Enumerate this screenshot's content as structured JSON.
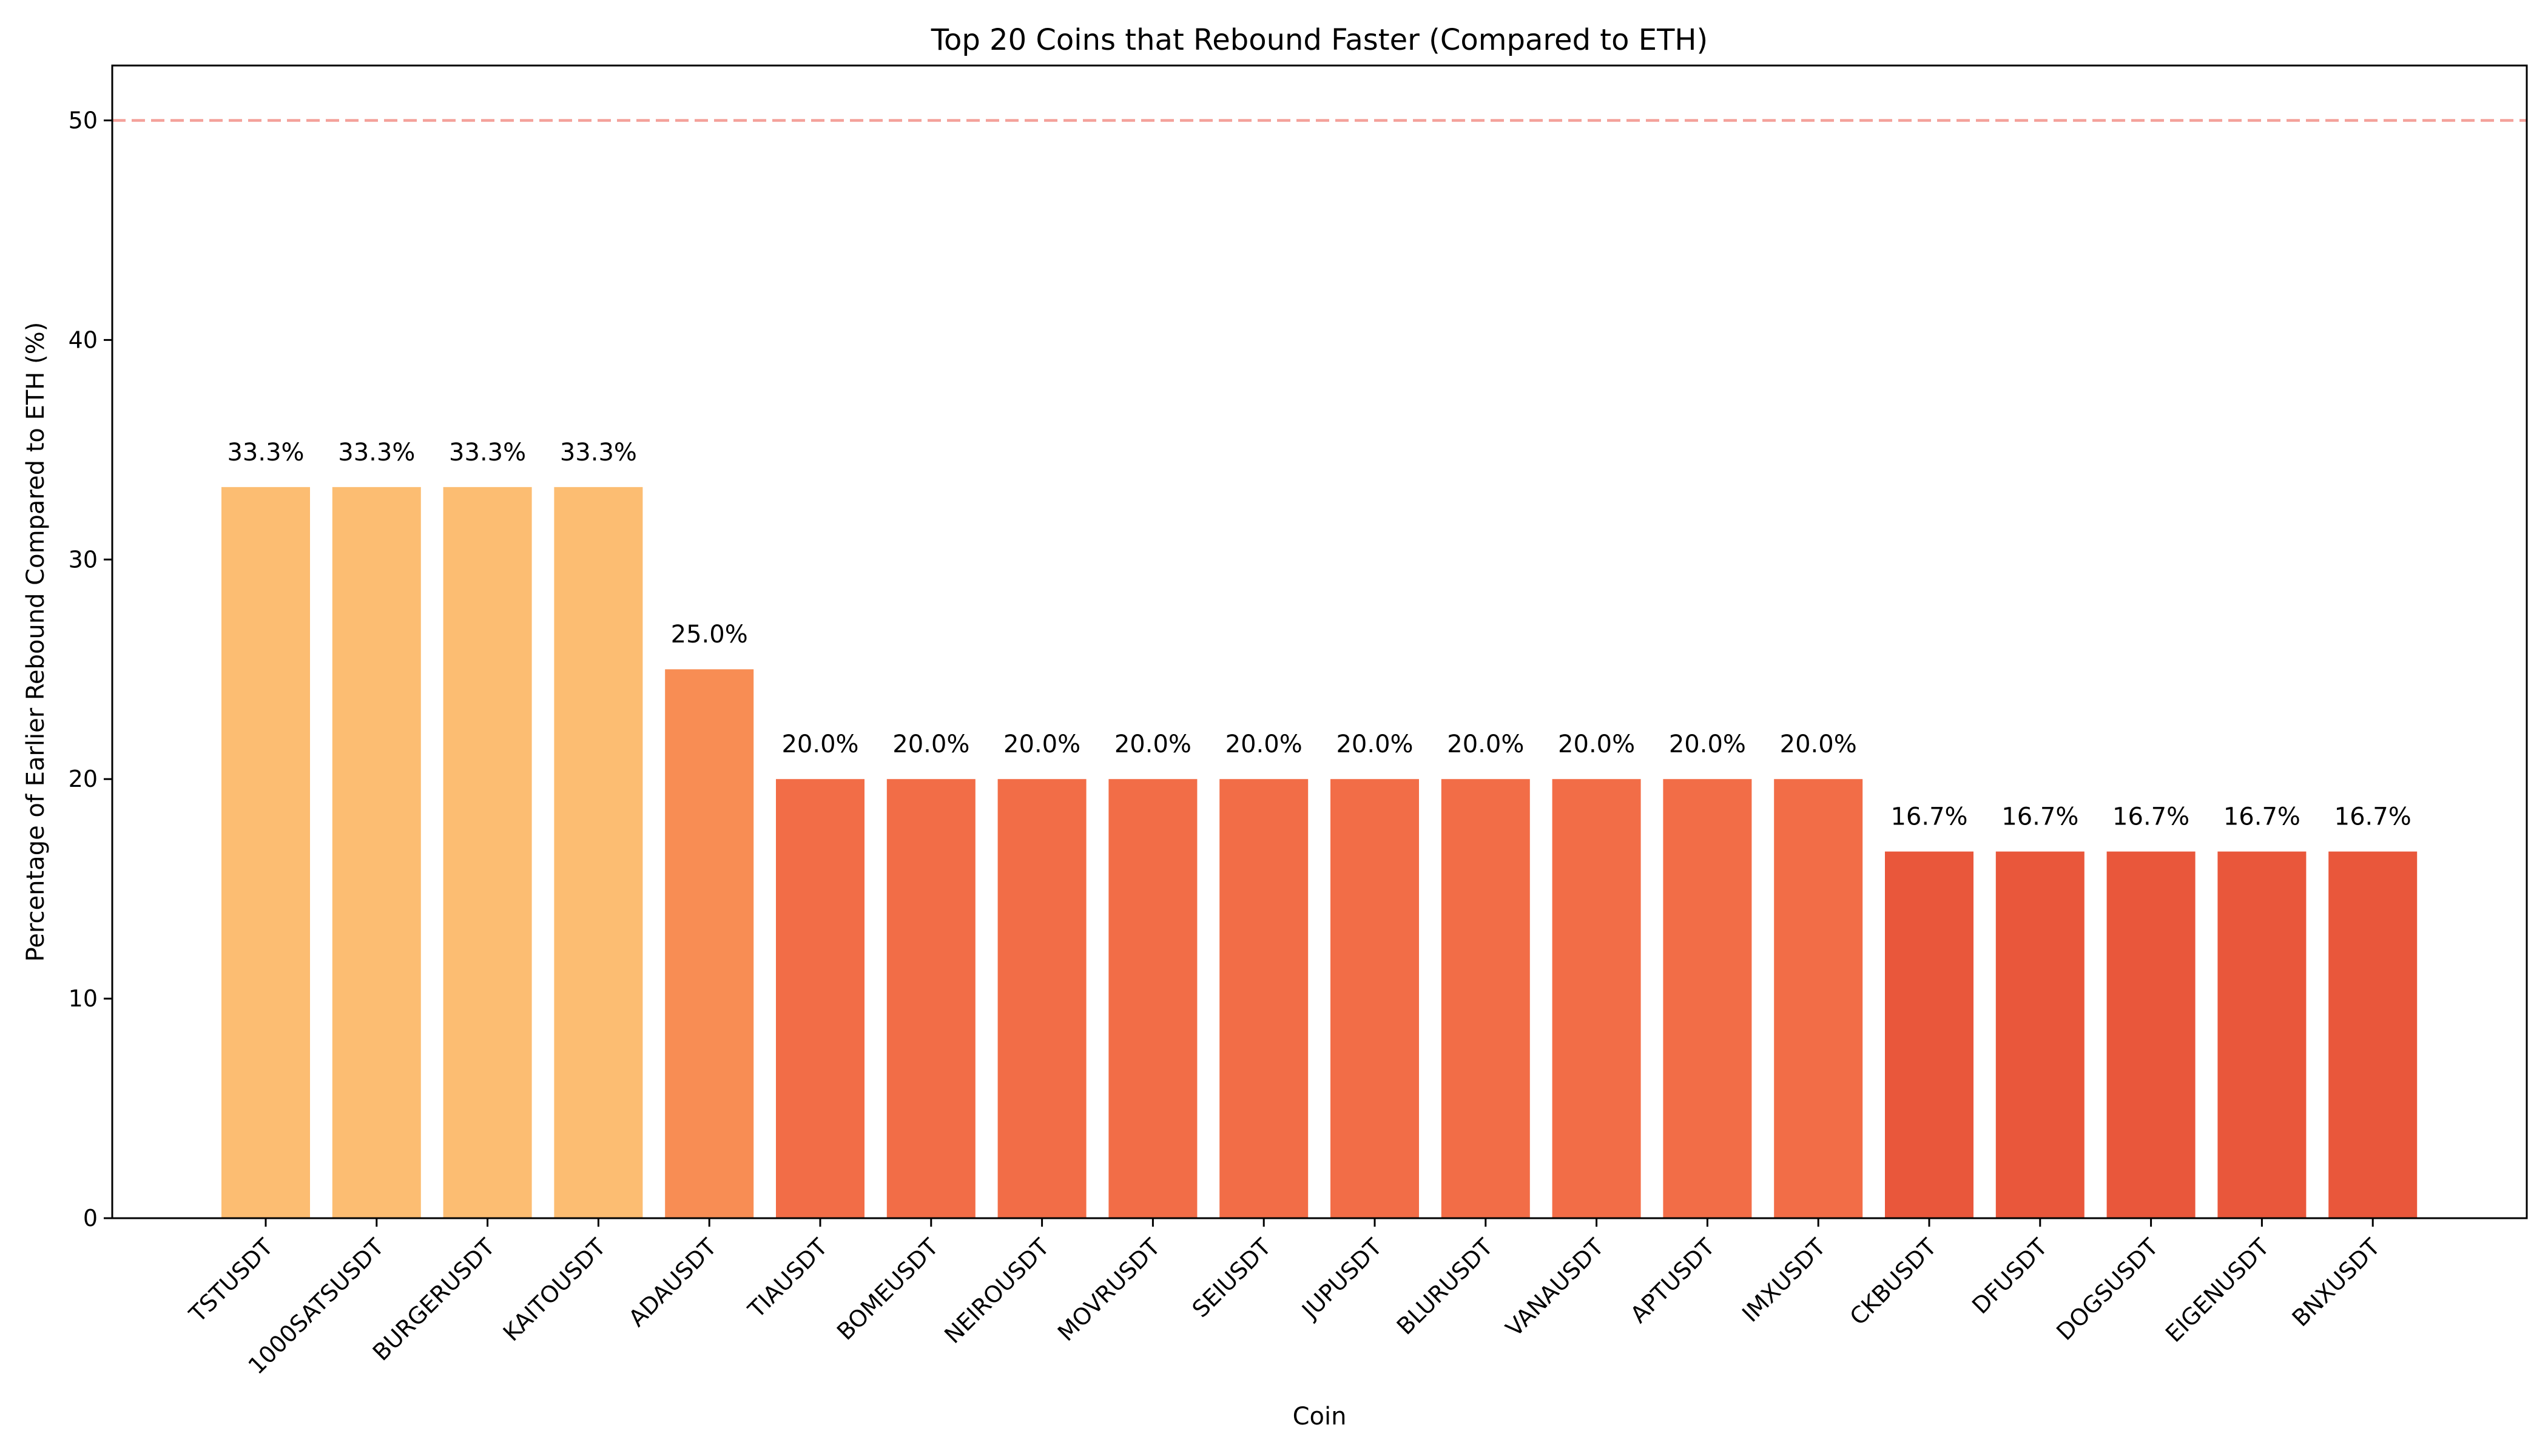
{
  "chart_data": {
    "type": "bar",
    "title": "Top 20 Coins that Rebound Faster (Compared to ETH)",
    "xlabel": "Coin",
    "ylabel": "Percentage of Earlier Rebound Compared to ETH (%)",
    "ylim": [
      0,
      52.5
    ],
    "yticks": [
      0,
      10,
      20,
      30,
      40,
      50
    ],
    "reference_line": {
      "y": 50,
      "style": "dashed",
      "color": "#f4a09a"
    },
    "categories": [
      "TSTUSDT",
      "1000SATSUSDT",
      "BURGERUSDT",
      "KAITOUSDT",
      "ADAUSDT",
      "TIAUSDT",
      "BOMEUSDT",
      "NEIROUSDT",
      "MOVRUSDT",
      "SEIUSDT",
      "JUPUSDT",
      "BLURUSDT",
      "VANAUSDT",
      "APTUSDT",
      "IMXUSDT",
      "CKBUSDT",
      "DFUSDT",
      "DOGSUSDT",
      "EIGENUSDT",
      "BNXUSDT"
    ],
    "values": [
      33.3,
      33.3,
      33.3,
      33.3,
      25.0,
      20.0,
      20.0,
      20.0,
      20.0,
      20.0,
      20.0,
      20.0,
      20.0,
      20.0,
      20.0,
      16.7,
      16.7,
      16.7,
      16.7,
      16.7
    ],
    "value_labels": [
      "33.3%",
      "33.3%",
      "33.3%",
      "33.3%",
      "25.0%",
      "20.0%",
      "20.0%",
      "20.0%",
      "20.0%",
      "20.0%",
      "20.0%",
      "20.0%",
      "20.0%",
      "20.0%",
      "20.0%",
      "16.7%",
      "16.7%",
      "16.7%",
      "16.7%",
      "16.7%"
    ],
    "colors": [
      "#fcbd72",
      "#fcbd72",
      "#fcbd72",
      "#fcbd72",
      "#f88d54",
      "#f26d47",
      "#f26d47",
      "#f26d47",
      "#f26d47",
      "#f26d47",
      "#f26d47",
      "#f26d47",
      "#f26d47",
      "#f26d47",
      "#f26d47",
      "#e9573b",
      "#e9573b",
      "#e9573b",
      "#e9573b",
      "#e9573b"
    ],
    "grid": false,
    "legend": "none"
  }
}
